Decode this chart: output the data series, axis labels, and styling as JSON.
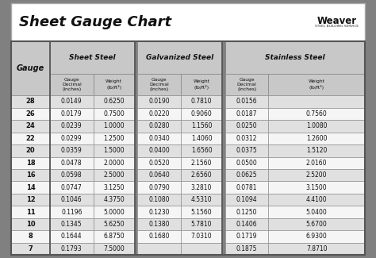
{
  "title": "Sheet Gauge Chart",
  "bg_outer": "#808080",
  "bg_inner": "#f0f0f0",
  "row_alt1": "#e0e0e0",
  "row_alt2": "#f5f5f5",
  "hdr_color": "#c8c8c8",
  "border_color": "#555555",
  "gauges": [
    28,
    26,
    24,
    22,
    20,
    18,
    16,
    14,
    12,
    11,
    10,
    8,
    7
  ],
  "sheet_steel_decimal": [
    "0.0149",
    "0.0179",
    "0.0239",
    "0.0299",
    "0.0359",
    "0.0478",
    "0.0598",
    "0.0747",
    "0.1046",
    "0.1196",
    "0.1345",
    "0.1644",
    "0.1793"
  ],
  "sheet_steel_weight": [
    "0.6250",
    "0.7500",
    "1.0000",
    "1.2500",
    "1.5000",
    "2.0000",
    "2.5000",
    "3.1250",
    "4.3750",
    "5.0000",
    "5.6250",
    "6.8750",
    "7.5000"
  ],
  "galv_decimal": [
    "0.0190",
    "0.0220",
    "0.0280",
    "0.0340",
    "0.0400",
    "0.0520",
    "0.0640",
    "0.0790",
    "0.1080",
    "0.1230",
    "0.1380",
    "0.1680",
    ""
  ],
  "galv_weight": [
    "0.7810",
    "0.9060",
    "1.1560",
    "1.4060",
    "1.6560",
    "2.1560",
    "2.6560",
    "3.2810",
    "4.5310",
    "5.1560",
    "5.7810",
    "7.0310",
    ""
  ],
  "stainless_decimal": [
    "0.0156",
    "0.0187",
    "0.0250",
    "0.0312",
    "0.0375",
    "0.0500",
    "0.0625",
    "0.0781",
    "0.1094",
    "0.1250",
    "0.1406",
    "0.1719",
    "0.1875"
  ],
  "stainless_weight": [
    "",
    "0.7560",
    "1.0080",
    "1.2600",
    "1.5120",
    "2.0160",
    "2.5200",
    "3.1500",
    "4.4100",
    "5.0400",
    "5.6700",
    "6.9300",
    "7.8710"
  ]
}
